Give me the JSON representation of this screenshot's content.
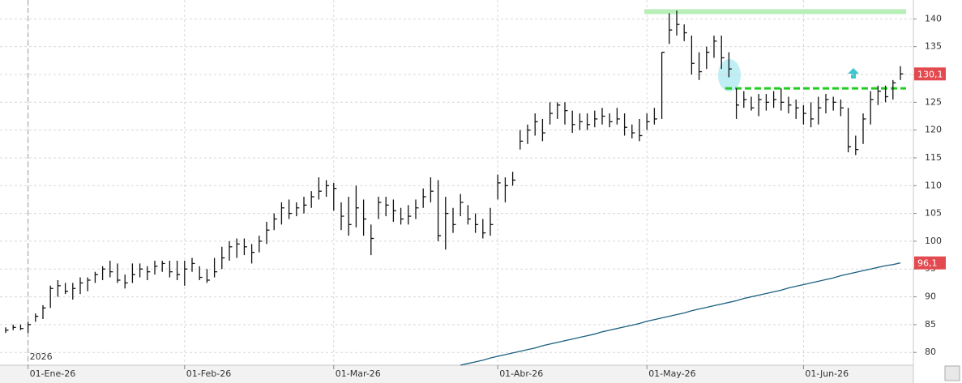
{
  "chart_data": {
    "type": "hlc",
    "year_label": "2026",
    "categories": [
      null,
      null,
      null,
      "01-Ene-26",
      null,
      null,
      null,
      null,
      null,
      null,
      null,
      null,
      null,
      null,
      null,
      null,
      null,
      null,
      null,
      null,
      null,
      null,
      null,
      null,
      "01-Feb-26",
      null,
      null,
      null,
      null,
      null,
      null,
      null,
      null,
      null,
      null,
      null,
      null,
      null,
      null,
      null,
      null,
      null,
      null,
      null,
      "01-Mar-26",
      null,
      null,
      null,
      null,
      null,
      null,
      null,
      null,
      null,
      null,
      null,
      null,
      null,
      null,
      null,
      null,
      null,
      null,
      null,
      null,
      null,
      "01-Abr-26",
      null,
      null,
      null,
      null,
      null,
      null,
      null,
      null,
      null,
      null,
      null,
      null,
      null,
      null,
      null,
      null,
      null,
      null,
      null,
      "01-May-26",
      null,
      null,
      null,
      null,
      null,
      null,
      null,
      null,
      null,
      null,
      null,
      null,
      null,
      null,
      null,
      null,
      null,
      null,
      null,
      null,
      "01-Jun-26",
      null,
      null,
      null,
      null,
      null,
      null,
      null,
      null,
      null,
      null,
      null,
      null,
      null
    ],
    "high": [
      84.5,
      85,
      85,
      85.5,
      87,
      88.5,
      92,
      93,
      92.5,
      92.5,
      93.5,
      93.5,
      94.5,
      95.5,
      96.5,
      96,
      94,
      96,
      96,
      95.5,
      96.5,
      96.5,
      96.5,
      96.5,
      96.5,
      97,
      95.5,
      95,
      97,
      99,
      100,
      100.5,
      100.5,
      99.5,
      101,
      103.5,
      105,
      107,
      107.5,
      107,
      108,
      109,
      111.5,
      111,
      110.5,
      107,
      108,
      110,
      107.5,
      103,
      108,
      108,
      107.5,
      106,
      106.5,
      107.5,
      109.5,
      111.5,
      111,
      108,
      106,
      108.5,
      106.5,
      105,
      104,
      106,
      112,
      111.5,
      112.5,
      120,
      121,
      123,
      122,
      125,
      125,
      125,
      123.5,
      123,
      123,
      123.5,
      124,
      123,
      124,
      123,
      121,
      122,
      123,
      124,
      134,
      141,
      141.5,
      139,
      137,
      134,
      135,
      137,
      137,
      134,
      127.5,
      127,
      126,
      126.5,
      126.5,
      127,
      127.5,
      126,
      125.5,
      124.5,
      125,
      126,
      126.5,
      126,
      125.5,
      124,
      119,
      123,
      127,
      128,
      128,
      129,
      131.5
    ],
    "low": [
      83.5,
      84,
      84,
      83.5,
      85.5,
      86,
      88,
      90,
      90.5,
      89.5,
      90.5,
      91,
      92.5,
      93,
      93.5,
      92.5,
      91.5,
      92.5,
      93.5,
      93,
      94,
      94.5,
      93.5,
      93,
      92,
      94.5,
      93,
      92.5,
      93.5,
      95,
      96.5,
      97,
      97.5,
      96,
      98,
      99.5,
      102,
      103,
      104,
      104.5,
      105,
      106,
      107.5,
      108,
      105.5,
      102,
      101,
      102.5,
      101,
      97.5,
      104,
      104.5,
      103.5,
      103,
      103,
      104,
      106,
      107,
      100,
      98.5,
      101.5,
      104.5,
      103,
      101.5,
      100.5,
      101,
      107.5,
      107,
      110,
      116.5,
      117.5,
      119,
      118,
      121,
      122,
      121,
      119.5,
      120,
      120,
      120.5,
      121,
      120.5,
      121,
      119,
      118.5,
      118,
      120,
      121,
      122,
      135.5,
      137,
      136,
      130,
      129,
      131,
      133,
      131,
      129.5,
      122,
      124,
      123.5,
      122.5,
      123.5,
      124,
      123.5,
      123,
      122,
      121,
      120.5,
      121,
      123,
      123.5,
      122.5,
      116,
      115.5,
      117.5,
      121,
      124.5,
      125,
      125.5,
      129
    ],
    "close": [
      84,
      84.5,
      84.3,
      85,
      86.5,
      88,
      91.5,
      92,
      91,
      91.5,
      92.5,
      93,
      94,
      95,
      94.5,
      93,
      92.5,
      94,
      95,
      94.5,
      95.5,
      96,
      94.5,
      94,
      95,
      96,
      93.5,
      93,
      94.5,
      97,
      99,
      99.5,
      99,
      98,
      100,
      102,
      104,
      106,
      105,
      106,
      106.5,
      108,
      109,
      110,
      109.5,
      104.5,
      103,
      106,
      104,
      100.5,
      107,
      106.5,
      105.5,
      104,
      104.5,
      106,
      108,
      109,
      101,
      105,
      103,
      107,
      104,
      103,
      101.5,
      103,
      110.5,
      110,
      111,
      118,
      120,
      121.5,
      119.5,
      123,
      124.5,
      123.5,
      121,
      121.5,
      121,
      122,
      122.5,
      121.5,
      122,
      120.5,
      119.5,
      119,
      121.5,
      122,
      134,
      138,
      139,
      137.5,
      132,
      130.5,
      134,
      136,
      133,
      131,
      124.5,
      125.5,
      124,
      125.5,
      125,
      125.5,
      125,
      124.5,
      124,
      123,
      122,
      124,
      125.5,
      125,
      124,
      117,
      116.5,
      122,
      125.5,
      127,
      126,
      128.5,
      130.1
    ],
    "bar_color": "#111111",
    "moving_average": {
      "color": "#1b5f80",
      "values": [
        null,
        null,
        null,
        null,
        null,
        null,
        null,
        null,
        null,
        null,
        null,
        null,
        null,
        null,
        null,
        null,
        null,
        null,
        null,
        null,
        null,
        null,
        null,
        null,
        null,
        null,
        null,
        null,
        null,
        null,
        null,
        null,
        null,
        null,
        null,
        null,
        null,
        null,
        null,
        null,
        null,
        null,
        null,
        null,
        null,
        null,
        null,
        null,
        null,
        null,
        null,
        null,
        null,
        null,
        null,
        null,
        null,
        null,
        null,
        null,
        null,
        77.7,
        78.0,
        78.3,
        78.6,
        79.0,
        79.3,
        79.6,
        79.9,
        80.2,
        80.5,
        80.8,
        81.2,
        81.5,
        81.8,
        82.1,
        82.4,
        82.7,
        83.0,
        83.3,
        83.7,
        84.0,
        84.3,
        84.6,
        84.9,
        85.2,
        85.6,
        85.9,
        86.2,
        86.5,
        86.8,
        87.1,
        87.5,
        87.8,
        88.1,
        88.4,
        88.7,
        89.0,
        89.3,
        89.7,
        90.0,
        90.3,
        90.6,
        90.9,
        91.2,
        91.6,
        91.9,
        92.2,
        92.5,
        92.8,
        93.1,
        93.4,
        93.8,
        94.1,
        94.4,
        94.7,
        95.0,
        95.3,
        95.6,
        95.8,
        96.1
      ]
    },
    "levels": [
      {
        "value": 141.3,
        "color": "#b8efb8",
        "style": "solid"
      },
      {
        "value": 127.5,
        "color": "#22cc22",
        "style": "dashed"
      }
    ],
    "annotations": [
      {
        "value": 130.1,
        "label": "130,1",
        "color": "#e34a4f"
      },
      {
        "value": 96.1,
        "label": "96,1",
        "color": "#e34a4f"
      }
    ],
    "ylim": [
      77.7,
      143.4
    ],
    "yticks": [
      80,
      85,
      90,
      95,
      100,
      105,
      110,
      115,
      120,
      125,
      130,
      135,
      140
    ],
    "grid": true
  }
}
